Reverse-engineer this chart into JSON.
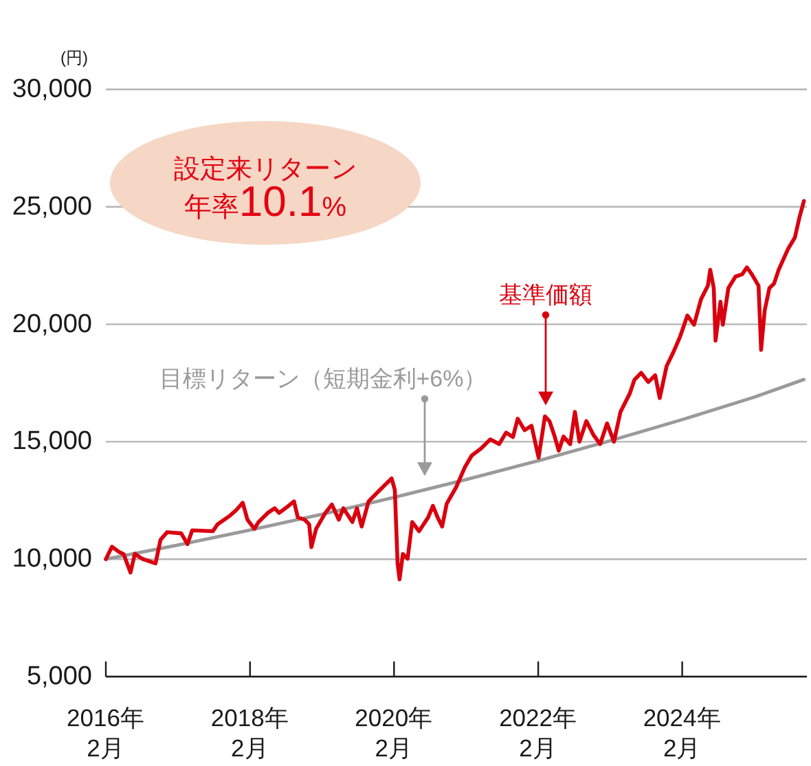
{
  "chart_data": {
    "type": "line",
    "ylabel": "(円)",
    "annotations": [
      "設定来リターン年率10.1%"
    ],
    "xlim": [
      "2016-02-01",
      "2025-10-25"
    ],
    "xticks": [
      {
        "value": "2016-02",
        "label": "2016年\n2月"
      },
      {
        "value": "2018-02",
        "label": "2018年\n2月"
      },
      {
        "value": "2020-02",
        "label": "2020年\n2月"
      },
      {
        "value": "2022-02",
        "label": "2022年\n2月"
      },
      {
        "value": "2024-02",
        "label": "2024年\n2月"
      }
    ],
    "ylim": [
      5000,
      30000
    ],
    "yticks": [
      {
        "value": 5000,
        "label": "5,000"
      },
      {
        "value": 10000,
        "label": "10,000"
      },
      {
        "value": 15000,
        "label": "15,000"
      },
      {
        "value": 20000,
        "label": "20,000"
      },
      {
        "value": 25000,
        "label": "25,000"
      },
      {
        "value": 30000,
        "label": "30,000"
      }
    ],
    "grid": "y",
    "legend": false,
    "marker": "none",
    "line_style": "solid",
    "series": [
      {
        "name": "目標リターン（短期金利+6%）",
        "color": "#9a9a9a",
        "x": [
          "2016-02-01",
          "2017-02-01",
          "2018-02-01",
          "2019-02-01",
          "2020-02-01",
          "2021-02-01",
          "2022-02-01",
          "2023-02-01",
          "2024-02-01",
          "2025-02-01",
          "2025-10-10"
        ],
        "values": [
          10000,
          10600,
          11240,
          11910,
          12630,
          13390,
          14190,
          15040,
          15940,
          16900,
          17650
        ]
      },
      {
        "name": "基準価額",
        "color": "#d9000f",
        "x": [
          "2016-02-01",
          "2016-03-03",
          "2016-04-07",
          "2016-05-01",
          "2016-06-05",
          "2016-06-27",
          "2016-08-02",
          "2016-10-10",
          "2016-11-04",
          "2016-12-08",
          "2017-02-17",
          "2017-03-21",
          "2017-04-14",
          "2017-07-27",
          "2017-08-20",
          "2017-10-17",
          "2017-11-21",
          "2017-12-26",
          "2018-01-19",
          "2018-02-23",
          "2018-03-16",
          "2018-05-02",
          "2018-06-06",
          "2018-06-28",
          "2018-08-15",
          "2018-09-12",
          "2018-10-01",
          "2018-11-05",
          "2018-11-28",
          "2018-12-09",
          "2019-01-02",
          "2019-02-18",
          "2019-03-23",
          "2019-04-27",
          "2019-05-20",
          "2019-07-05",
          "2019-07-28",
          "2019-08-21",
          "2019-09-25",
          "2019-10-29",
          "2019-12-16",
          "2020-01-20",
          "2020-02-05",
          "2020-02-19",
          "2020-02-29",
          "2020-03-17",
          "2020-04-10",
          "2020-05-03",
          "2020-06-07",
          "2020-07-23",
          "2020-08-16",
          "2020-09-09",
          "2020-10-02",
          "2020-10-25",
          "2020-12-11",
          "2021-01-26",
          "2021-03-01",
          "2021-04-17",
          "2021-06-03",
          "2021-07-18",
          "2021-08-22",
          "2021-09-26",
          "2021-10-20",
          "2021-11-24",
          "2021-12-29",
          "2022-02-03",
          "2022-03-07",
          "2022-03-30",
          "2022-04-23",
          "2022-05-16",
          "2022-06-09",
          "2022-07-13",
          "2022-08-06",
          "2022-08-29",
          "2022-10-03",
          "2022-11-08",
          "2022-12-12",
          "2023-01-16",
          "2023-02-20",
          "2023-03-25",
          "2023-05-11",
          "2023-06-04",
          "2023-07-08",
          "2023-08-13",
          "2023-09-17",
          "2023-10-10",
          "2023-11-14",
          "2023-12-18",
          "2024-01-22",
          "2024-02-27",
          "2024-04-01",
          "2024-05-06",
          "2024-06-10",
          "2024-06-22",
          "2024-07-10",
          "2024-07-19",
          "2024-08-13",
          "2024-08-25",
          "2024-09-22",
          "2024-10-28",
          "2024-12-01",
          "2024-12-25",
          "2025-01-19",
          "2025-02-22",
          "2025-03-07",
          "2025-03-25",
          "2025-04-18",
          "2025-05-12",
          "2025-06-04",
          "2025-07-21",
          "2025-08-25",
          "2025-09-18",
          "2025-10-10"
        ],
        "values": [
          10000,
          10530,
          10310,
          10220,
          9430,
          10230,
          10020,
          9820,
          10820,
          11150,
          11100,
          10640,
          11230,
          11190,
          11480,
          11820,
          12070,
          12400,
          11680,
          11290,
          11580,
          11970,
          12170,
          11970,
          12270,
          12460,
          11780,
          11680,
          11480,
          10510,
          11290,
          11970,
          12330,
          11680,
          12170,
          11580,
          12170,
          11390,
          12460,
          12750,
          13150,
          13440,
          12950,
          9820,
          9140,
          10220,
          10020,
          11580,
          11190,
          11780,
          12270,
          11780,
          11390,
          12360,
          13050,
          13930,
          14410,
          14710,
          15100,
          14900,
          15390,
          15200,
          15980,
          15490,
          15680,
          14320,
          16080,
          15880,
          15290,
          14620,
          15220,
          14900,
          16270,
          15000,
          15880,
          15290,
          14900,
          15780,
          15000,
          16270,
          17050,
          17640,
          17930,
          17540,
          17830,
          16860,
          18220,
          18810,
          19490,
          20370,
          19980,
          21060,
          21640,
          22320,
          21540,
          19300,
          20960,
          19980,
          21540,
          22030,
          22130,
          22420,
          22130,
          21640,
          18910,
          20580,
          21540,
          21740,
          22320,
          23200,
          23690,
          24570,
          25250
        ]
      }
    ]
  }
}
